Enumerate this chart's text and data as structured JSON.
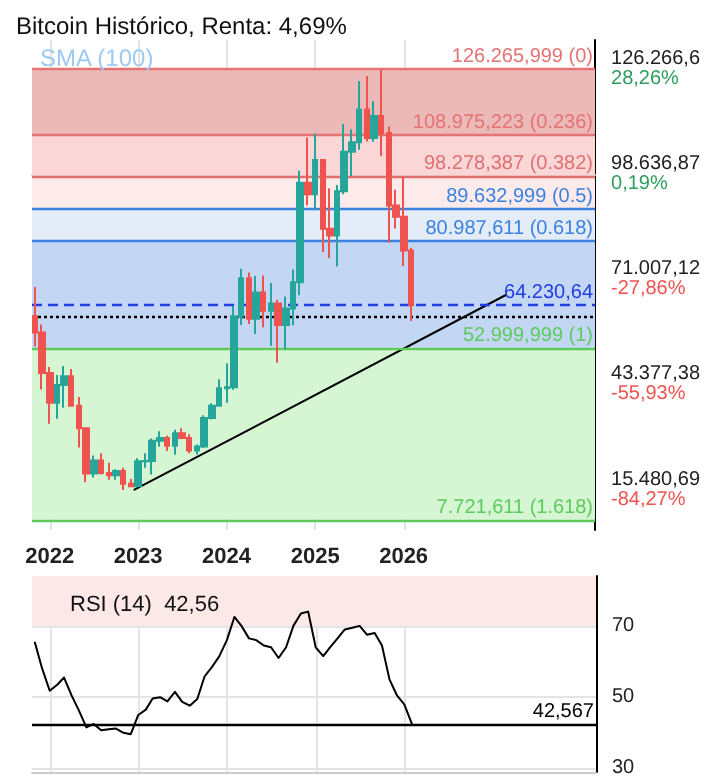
{
  "chart_data": [
    {
      "type": "candlestick",
      "title": "Bitcoin Histórico, Renta: 4,69%",
      "annotations": [
        "SMA (100)"
      ],
      "x": [
        "2021-11",
        "2021-12",
        "2022-01",
        "2022-02",
        "2022-03",
        "2022-04",
        "2022-05",
        "2022-06",
        "2022-07",
        "2022-08",
        "2022-09",
        "2022-10",
        "2022-11",
        "2022-12",
        "2023-01",
        "2023-02",
        "2023-03",
        "2023-04",
        "2023-05",
        "2023-06",
        "2023-07",
        "2023-08",
        "2023-09",
        "2023-10",
        "2023-11",
        "2023-12",
        "2024-01",
        "2024-02",
        "2024-03",
        "2024-04",
        "2024-05",
        "2024-06",
        "2024-07",
        "2024-08",
        "2024-09",
        "2024-10",
        "2024-11",
        "2024-12",
        "2025-01",
        "2025-02",
        "2025-03",
        "2025-04",
        "2025-05",
        "2025-06",
        "2025-07",
        "2025-08",
        "2025-09",
        "2025-10",
        "2025-11",
        "2025-12",
        "2026-01",
        "2026-02"
      ],
      "ohlc": [
        [
          61300,
          69000,
          53300,
          57000
        ],
        [
          57000,
          59100,
          42000,
          46300
        ],
        [
          46300,
          47900,
          33000,
          38500
        ],
        [
          38500,
          45800,
          34300,
          43200
        ],
        [
          43200,
          48200,
          37200,
          45500
        ],
        [
          45500,
          47400,
          37700,
          37700
        ],
        [
          37700,
          40000,
          26700,
          31800
        ],
        [
          31800,
          31900,
          17600,
          19900
        ],
        [
          19900,
          24600,
          18800,
          23300
        ],
        [
          23300,
          25200,
          19600,
          20000
        ],
        [
          20000,
          22700,
          18200,
          19400
        ],
        [
          19400,
          21000,
          18200,
          20500
        ],
        [
          20500,
          21400,
          15500,
          17200
        ],
        [
          17200,
          18400,
          16300,
          16500
        ],
        [
          16500,
          23900,
          16500,
          23100
        ],
        [
          23100,
          25200,
          21400,
          23150
        ],
        [
          23150,
          29100,
          19600,
          28500
        ],
        [
          28500,
          31000,
          26900,
          29200
        ],
        [
          29200,
          29800,
          25800,
          27200
        ],
        [
          27200,
          31400,
          24800,
          30500
        ],
        [
          30500,
          31800,
          28900,
          29200
        ],
        [
          29200,
          30200,
          25200,
          25900
        ],
        [
          25900,
          27500,
          24900,
          27000
        ],
        [
          27000,
          35200,
          26600,
          34500
        ],
        [
          34500,
          38400,
          34100,
          37700
        ],
        [
          37700,
          44700,
          37600,
          42300
        ],
        [
          42300,
          48900,
          38500,
          42600
        ],
        [
          42600,
          64000,
          41900,
          61200
        ],
        [
          61200,
          73800,
          59000,
          71300
        ],
        [
          71300,
          72800,
          59200,
          60600
        ],
        [
          60600,
          71900,
          56600,
          67500
        ],
        [
          67500,
          72000,
          58400,
          62700
        ],
        [
          62700,
          70000,
          53500,
          64600
        ],
        [
          64600,
          65600,
          49000,
          59000
        ],
        [
          59000,
          66500,
          52600,
          63300
        ],
        [
          63300,
          73600,
          58900,
          70200
        ],
        [
          70200,
          99600,
          66800,
          96400
        ],
        [
          96400,
          108300,
          90500,
          93400
        ],
        [
          93400,
          109400,
          89200,
          102400
        ],
        [
          102400,
          102500,
          78200,
          84300
        ],
        [
          84300,
          95000,
          76600,
          82500
        ],
        [
          82500,
          95800,
          74400,
          94200
        ],
        [
          94200,
          111900,
          93400,
          104600
        ],
        [
          104600,
          110500,
          98200,
          107100
        ],
        [
          107100,
          123200,
          105100,
          115700
        ],
        [
          115700,
          124500,
          107300,
          108200
        ],
        [
          108200,
          117900,
          107200,
          114000
        ],
        [
          114000,
          126200,
          103500,
          109500
        ],
        [
          109500,
          111200,
          80600,
          90400
        ],
        [
          90400,
          94600,
          84400,
          87500
        ],
        [
          87500,
          97900,
          74500,
          78600
        ],
        [
          78600,
          79300,
          60000,
          64230
        ]
      ],
      "series": [
        {
          "type": "line",
          "x": [
            "2022-12-17",
            "2027-02-25"
          ],
          "values": [
            15600,
            66800
          ],
          "color": "#000000",
          "marker": "none"
        }
      ],
      "xlim": [
        "2021-10-20",
        "2028-03"
      ],
      "xticks": [
        "2022",
        "2023",
        "2024",
        "2025",
        "2026"
      ],
      "ylim": [
        5000,
        134000
      ],
      "yticks": [
        {
          "value": 15480.69,
          "label": "15.480,69"
        },
        {
          "value": 43377.38,
          "label": "43.377,38"
        },
        {
          "value": 71007.12,
          "label": "71.007,12"
        },
        {
          "value": 98636.87,
          "label": "98.636,87"
        },
        {
          "value": 126266.6,
          "label": "126.266,6"
        }
      ],
      "y2lim": [
        -94.92,
        36.11
      ],
      "y2ticks": [
        {
          "value": -84.27,
          "label": "-84,27%"
        },
        {
          "value": -55.93,
          "label": "-55,93%"
        },
        {
          "value": -27.86,
          "label": "-27,86%"
        },
        {
          "value": 0.19,
          "label": "0,19%"
        },
        {
          "value": 28.26,
          "label": "28,26%"
        }
      ],
      "grid": true,
      "bands": [
        {
          "axis": "y",
          "from": 7721.611,
          "to": 52999.999,
          "color": "#d6f5d2"
        },
        {
          "axis": "y",
          "from": 52999.999,
          "to": 80987.611,
          "color": "#c3d7f5"
        },
        {
          "axis": "y",
          "from": 80987.611,
          "to": 89632.999,
          "color": "#e4ecf8"
        },
        {
          "axis": "y",
          "from": 89632.999,
          "to": 98278.387,
          "color": "#fdeaea"
        },
        {
          "axis": "y",
          "from": 98278.387,
          "to": 108975.223,
          "color": "#fbd6d6"
        },
        {
          "axis": "y",
          "from": 108975.223,
          "to": 126265.999,
          "color": "#ecb9b9"
        }
      ],
      "ref_lines": [
        {
          "axis": "y",
          "value": 126265.999,
          "label": "126.265,999 (0)",
          "color": "#e57373",
          "line_style": "solid"
        },
        {
          "axis": "y",
          "value": 108975.223,
          "label": "108.975,223 (0.236)",
          "color": "#e57373",
          "line_style": "solid"
        },
        {
          "axis": "y",
          "value": 98278.387,
          "label": "98.278,387 (0.382)",
          "color": "#e07070",
          "line_style": "solid"
        },
        {
          "axis": "y",
          "value": 89632.999,
          "label": "89.632,999 (0.5)",
          "color": "#3b82e0",
          "line_style": "solid"
        },
        {
          "axis": "y",
          "value": 80987.611,
          "label": "80.987,611 (0.618)",
          "color": "#3b82e0",
          "line_style": "solid"
        },
        {
          "axis": "y",
          "value": 52999.999,
          "label": "52.999,999 (1)",
          "color": "#5ccb5c",
          "line_style": "solid"
        },
        {
          "axis": "y",
          "value": 7721.611,
          "label": "7.721,611 (1.618)",
          "color": "#5ccb5c",
          "line_style": "solid"
        },
        {
          "axis": "y",
          "value": 64230.64,
          "label": "64.230,64",
          "color": "#1f3de0",
          "line_style": "dashed"
        },
        {
          "axis": "y",
          "value": 61200,
          "label": null,
          "color": "#000000",
          "line_style": "dotted"
        }
      ]
    },
    {
      "type": "line",
      "title": "RSI (14)  42,56",
      "x": [
        "2021-11",
        "2021-12",
        "2022-01",
        "2022-02",
        "2022-03",
        "2022-04",
        "2022-05",
        "2022-06",
        "2022-07",
        "2022-08",
        "2022-09",
        "2022-10",
        "2022-11",
        "2022-12",
        "2023-01",
        "2023-02",
        "2023-03",
        "2023-04",
        "2023-05",
        "2023-06",
        "2023-07",
        "2023-08",
        "2023-09",
        "2023-10",
        "2023-11",
        "2023-12",
        "2024-01",
        "2024-02",
        "2024-03",
        "2024-04",
        "2024-05",
        "2024-06",
        "2024-07",
        "2024-08",
        "2024-09",
        "2024-10",
        "2024-11",
        "2024-12",
        "2025-01",
        "2025-02",
        "2025-03",
        "2025-04",
        "2025-05",
        "2025-06",
        "2025-07",
        "2025-08",
        "2025-09",
        "2025-10",
        "2025-11",
        "2025-12",
        "2026-01",
        "2026-02"
      ],
      "series": [
        {
          "color": "#000000",
          "values": [
            65.3,
            58,
            51.8,
            53.5,
            55.5,
            50.5,
            46.3,
            41.5,
            42.5,
            40.7,
            41,
            41.2,
            40,
            39.6,
            45,
            46.5,
            49.6,
            50,
            48.8,
            51.5,
            48.7,
            47.6,
            49.5,
            55.8,
            58.5,
            61.5,
            66,
            72.5,
            70,
            66.5,
            66,
            64.5,
            64,
            61,
            64,
            70,
            73.5,
            74,
            64,
            61.5,
            64,
            66.5,
            69,
            69.5,
            70,
            67.5,
            68,
            64.5,
            55,
            50.6,
            48,
            42.6
          ]
        }
      ],
      "xlim": [
        "2021-10-20",
        "2028-03"
      ],
      "xticks": [
        "2022",
        "2023",
        "2024",
        "2025",
        "2026"
      ],
      "ylim": [
        29,
        84
      ],
      "yticks": [
        30,
        50,
        70
      ],
      "tick_labels": "y",
      "grid": true,
      "marker": "none",
      "bands": [
        {
          "axis": "y",
          "from": 70,
          "to": 84,
          "color": "#fde8e8"
        }
      ],
      "ref_lines": [
        {
          "axis": "y",
          "value": 42.567,
          "label": "42,567",
          "color": "#000000",
          "line_style": "solid"
        }
      ]
    }
  ]
}
